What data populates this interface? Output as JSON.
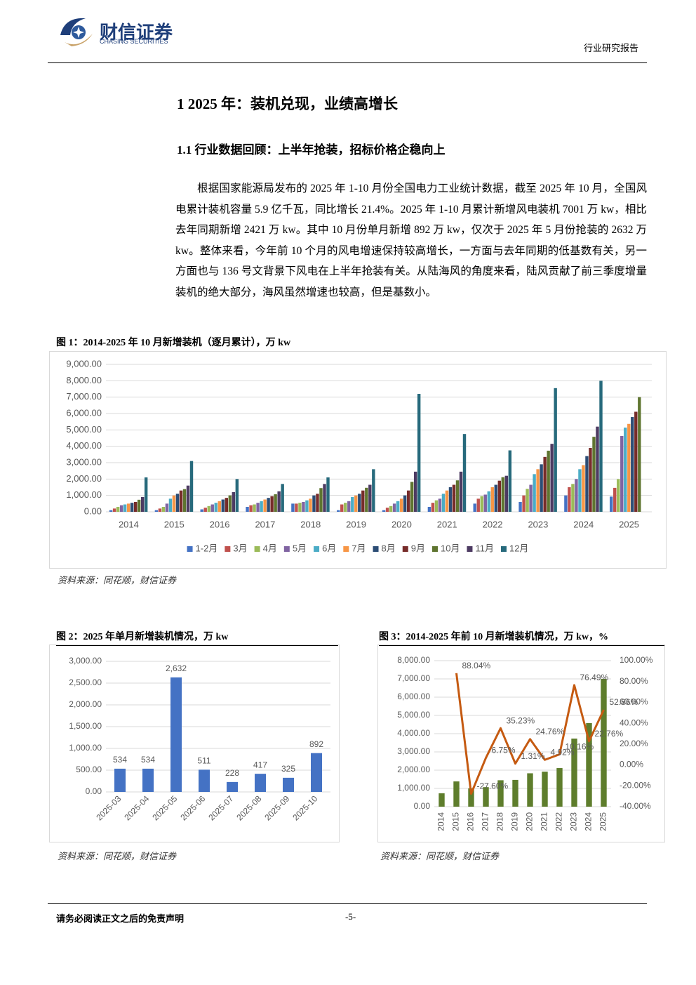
{
  "header": {
    "logo_name": "财信证券",
    "logo_sub": "CHASING SECURITIES",
    "report_type": "行业研究报告"
  },
  "heading1": "1 2025 年：装机兑现，业绩高增长",
  "heading2": "1.1 行业数据回顾：上半年抢装，招标价格企稳向上",
  "paragraph": "根据国家能源局发布的 2025 年 1-10 月份全国电力工业统计数据，截至 2025 年 10 月，全国风电累计装机容量 5.9 亿千瓦，同比增长 21.4%。2025 年 1-10 月累计新增风电装机 7001 万 kw，相比去年同期新增 2421 万 kw。其中 10 月份单月新增 892 万 kw，仅次于 2025 年 5 月份抢装的 2632 万 kw。整体来看，今年前 10 个月的风电增速保持较高增长，一方面与去年同期的低基数有关，另一方面也与 136 号文背景下风电在上半年抢装有关。从陆海风的角度来看，陆风贡献了前三季度增量装机的绝大部分，海风虽然增速也较高，但是基数小。",
  "chart_data": [
    {
      "type": "bar",
      "title": "图 1：2014-2025 年 10 月新增装机（逐月累计），万 kw",
      "source": "资料来源：同花顺，财信证券",
      "categories": [
        "2014",
        "2015",
        "2016",
        "2017",
        "2018",
        "2019",
        "2020",
        "2021",
        "2022",
        "2023",
        "2024",
        "2025"
      ],
      "series": [
        {
          "name": "1-2月",
          "color": "#4472c4",
          "values": [
            100,
            100,
            150,
            300,
            500,
            100,
            100,
            300,
            500,
            600,
            1000,
            928
          ]
        },
        {
          "name": "3月",
          "color": "#c0504d",
          "values": [
            200,
            200,
            250,
            400,
            500,
            450,
            250,
            550,
            800,
            1000,
            1500,
            1462
          ]
        },
        {
          "name": "4月",
          "color": "#9bbb59",
          "values": [
            300,
            300,
            350,
            450,
            550,
            550,
            350,
            700,
            950,
            1400,
            1700,
            1996
          ]
        },
        {
          "name": "5月",
          "color": "#8064a2",
          "values": [
            400,
            500,
            450,
            550,
            600,
            650,
            500,
            800,
            1050,
            1650,
            2000,
            4628
          ]
        },
        {
          "name": "6月",
          "color": "#4bacc6",
          "values": [
            450,
            800,
            550,
            650,
            700,
            900,
            650,
            1100,
            1250,
            2300,
            2600,
            5139
          ]
        },
        {
          "name": "7月",
          "color": "#f79646",
          "values": [
            500,
            1000,
            650,
            750,
            800,
            1000,
            800,
            1300,
            1500,
            2600,
            2850,
            5367
          ]
        },
        {
          "name": "8月",
          "color": "#2c4d75",
          "values": [
            550,
            1100,
            750,
            850,
            1000,
            1100,
            1000,
            1500,
            1650,
            2900,
            3400,
            5784
          ]
        },
        {
          "name": "9月",
          "color": "#772c2a",
          "values": [
            600,
            1300,
            850,
            950,
            1100,
            1300,
            1300,
            1650,
            1900,
            3350,
            3900,
            6109
          ]
        },
        {
          "name": "10月",
          "color": "#5f7530",
          "values": [
            736,
            1384,
            1002,
            1070,
            1447,
            1466,
            1829,
            1919,
            2114,
            3731,
            4580,
            7001
          ]
        },
        {
          "name": "11月",
          "color": "#4d3b62",
          "values": [
            900,
            1600,
            1200,
            1250,
            1700,
            1650,
            2450,
            2450,
            2200,
            4150,
            5200,
            null
          ]
        },
        {
          "name": "12月",
          "color": "#276a7c",
          "values": [
            2100,
            3100,
            2000,
            1700,
            2100,
            2600,
            7200,
            4750,
            3750,
            7550,
            8000,
            null
          ]
        }
      ],
      "ylim": [
        0,
        9000
      ],
      "yticks": [
        {
          "value": 0,
          "label": "0.00"
        },
        {
          "value": 1000,
          "label": "1,000.00"
        },
        {
          "value": 2000,
          "label": "2,000.00"
        },
        {
          "value": 3000,
          "label": "3,000.00"
        },
        {
          "value": 4000,
          "label": "4,000.00"
        },
        {
          "value": 5000,
          "label": "5,000.00"
        },
        {
          "value": 6000,
          "label": "6,000.00"
        },
        {
          "value": 7000,
          "label": "7,000.00"
        },
        {
          "value": 8000,
          "label": "8,000.00"
        },
        {
          "value": 9000,
          "label": "9,000.00"
        }
      ],
      "grid": true,
      "legend": "bottom"
    },
    {
      "type": "bar",
      "title": "图 2：2025 年单月新增装机情况，万 kw",
      "source": "资料来源：同花顺，财信证券",
      "categories": [
        "2025-03",
        "2025-04",
        "2025-05",
        "2025-06",
        "2025-07",
        "2025-08",
        "2025-09",
        "2025-10"
      ],
      "series": [
        {
          "color": "#4472c4",
          "values": [
            534,
            534,
            2632,
            511,
            228,
            417,
            325,
            892
          ],
          "value_labels": [
            "534",
            "534",
            "2,632",
            "511",
            "228",
            "417",
            "325",
            "892"
          ]
        }
      ],
      "ylim": [
        0,
        3000
      ],
      "yticks": [
        {
          "value": 0,
          "label": "0.00"
        },
        {
          "value": 500,
          "label": "500.00"
        },
        {
          "value": 1000,
          "label": "1,000.00"
        },
        {
          "value": 1500,
          "label": "1,500.00"
        },
        {
          "value": 2000,
          "label": "2,000.00"
        },
        {
          "value": 2500,
          "label": "2,500.00"
        },
        {
          "value": 3000,
          "label": "3,000.00"
        }
      ],
      "grid": true
    },
    {
      "type": "combo",
      "title": "图 3：2014-2025 年前 10 月新增装机情况，万 kw，%",
      "source": "资料来源：同花顺，财信证券",
      "categories": [
        "2014",
        "2015",
        "2016",
        "2017",
        "2018",
        "2019",
        "2020",
        "2021",
        "2022",
        "2023",
        "2024",
        "2025"
      ],
      "series": [
        {
          "type": "bar",
          "color": "#5e7d2c",
          "values": [
            736,
            1384,
            1002,
            1070,
            1447,
            1466,
            1829,
            1919,
            2114,
            3731,
            4580,
            7001
          ]
        },
        {
          "type": "line",
          "axis": "y2",
          "color": "#c55a11",
          "values": [
            null,
            88.04,
            -27.6,
            6.75,
            35.23,
            1.31,
            24.76,
            4.92,
            10.16,
            76.49,
            22.76,
            52.86
          ],
          "value_labels": [
            null,
            "88.04%",
            "-27.60%",
            "6.75%",
            "35.23%",
            "1.31%",
            "24.76%",
            "4.92%",
            "10.16%",
            "76.49%",
            "22.76%",
            "52.86%"
          ]
        }
      ],
      "ylim": [
        0,
        8000
      ],
      "yticks": [
        {
          "value": 0,
          "label": "0.00"
        },
        {
          "value": 1000,
          "label": "1,000.00"
        },
        {
          "value": 2000,
          "label": "2,000.00"
        },
        {
          "value": 3000,
          "label": "3,000.00"
        },
        {
          "value": 4000,
          "label": "4,000.00"
        },
        {
          "value": 5000,
          "label": "5,000.00"
        },
        {
          "value": 6000,
          "label": "6,000.00"
        },
        {
          "value": 7000,
          "label": "7,000.00"
        },
        {
          "value": 8000,
          "label": "8,000.00"
        }
      ],
      "y2lim": [
        -40,
        100
      ],
      "y2ticks": [
        {
          "value": -40,
          "label": "-40.00%"
        },
        {
          "value": -20,
          "label": "-20.00%"
        },
        {
          "value": 0,
          "label": "0.00%"
        },
        {
          "value": 20,
          "label": "20.00%"
        },
        {
          "value": 40,
          "label": "40.00%"
        },
        {
          "value": 60,
          "label": "60.00%"
        },
        {
          "value": 80,
          "label": "80.00%"
        },
        {
          "value": 100,
          "label": "100.00%"
        }
      ],
      "grid": true
    }
  ],
  "footer": {
    "disclaimer": "请务必阅读正文之后的免责声明",
    "page": "-5-"
  }
}
